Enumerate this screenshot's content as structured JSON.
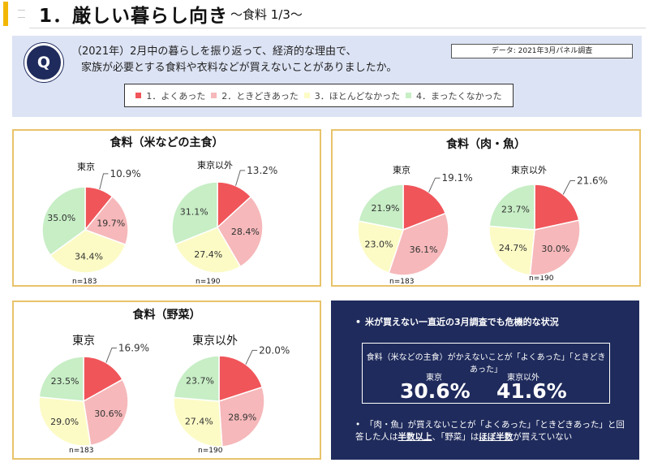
{
  "header": {
    "title": "1．厳しい暮らし向き",
    "subtitle": "～食料 1/3～"
  },
  "question": {
    "icon_text": "Q",
    "line1": "（2021年）2月中の暮らしを振り返って、経済的な理由で、",
    "line2": "家族が必要とする食料や衣料などが買えないことがありましたか。",
    "data_source": "データ: 2021年3月パネル調査"
  },
  "legend": [
    {
      "label": "1．よくあった",
      "color": "#f0555a"
    },
    {
      "label": "2．ときどきあった",
      "color": "#f6b8ba"
    },
    {
      "label": "3．ほとんどなかった",
      "color": "#fcfbc6"
    },
    {
      "label": "4．まったくなかった",
      "color": "#c7eec5"
    }
  ],
  "colors": {
    "accent": "#f2b705",
    "navy": "#1f2b5c",
    "panel_border": "#e8c36a",
    "question_bg": "#dce3f4"
  },
  "panels": {
    "staple": {
      "title": "食料（米などの主食）",
      "left_label": "東京",
      "right_label": "東京以外",
      "left_n": "n=183",
      "right_n": "n=190"
    },
    "meat": {
      "title": "食料（肉・魚）",
      "left_label": "東京",
      "right_label": "東京以外",
      "left_n": "n=183",
      "right_n": "n=190"
    },
    "veg": {
      "title": "食料（野菜）",
      "left_label": "東京",
      "right_label": "東京以外",
      "left_n": "n=183",
      "right_n": "n=190"
    }
  },
  "chart_data": [
    {
      "type": "pie",
      "title": "食料（米などの主食）",
      "name": "東京",
      "n": "n=183",
      "categories": [
        "1．よくあった",
        "2．ときどきあった",
        "3．ほとんどなかった",
        "4．まったくなかった"
      ],
      "values": [
        10.9,
        19.7,
        34.4,
        35.0
      ]
    },
    {
      "type": "pie",
      "title": "食料（米などの主食）",
      "name": "東京以外",
      "n": "n=190",
      "categories": [
        "1．よくあった",
        "2．ときどきあった",
        "3．ほとんどなかった",
        "4．まったくなかった"
      ],
      "values": [
        13.2,
        28.4,
        27.4,
        31.1
      ]
    },
    {
      "type": "pie",
      "title": "食料（肉・魚）",
      "name": "東京",
      "n": "n=183",
      "categories": [
        "1．よくあった",
        "2．ときどきあった",
        "3．ほとんどなかった",
        "4．まったくなかった"
      ],
      "values": [
        19.1,
        36.1,
        23.0,
        21.9
      ]
    },
    {
      "type": "pie",
      "title": "食料（肉・魚）",
      "name": "東京以外",
      "n": "n=190",
      "categories": [
        "1．よくあった",
        "2．ときどきあった",
        "3．ほとんどなかった",
        "4．まったくなかった"
      ],
      "values": [
        21.6,
        30.0,
        24.7,
        23.7
      ]
    },
    {
      "type": "pie",
      "title": "食料（野菜）",
      "name": "東京",
      "n": "n=183",
      "categories": [
        "1．よくあった",
        "2．ときどきあった",
        "3．ほとんどなかった",
        "4．まったくなかった"
      ],
      "values": [
        16.9,
        30.6,
        29.0,
        23.5
      ]
    },
    {
      "type": "pie",
      "title": "食料（野菜）",
      "name": "東京以外",
      "n": "n=190",
      "categories": [
        "1．よくあった",
        "2．ときどきあった",
        "3．ほとんどなかった",
        "4．まったくなかった"
      ],
      "values": [
        20.0,
        28.9,
        27.4,
        23.7
      ]
    }
  ],
  "summary": {
    "bullet_char": "•",
    "bullet1": "米が買えない一直近の3月調査でも危機的な状況",
    "box_title": "食料（米などの主食）がかえないことが「よくあった」「ときどきあった」",
    "left_region": "東京",
    "left_value": "30.6%",
    "right_region": "東京以外",
    "right_value": "41.6%",
    "bullet2_part1": "「肉・魚」が買えないことが「よくあった」「ときどきあった」と回答した人は",
    "bullet2_bold1": "半数以上",
    "bullet2_part2": "、「野菜」は",
    "bullet2_bold2": "ほぼ半数",
    "bullet2_part3": "が買えていない"
  }
}
